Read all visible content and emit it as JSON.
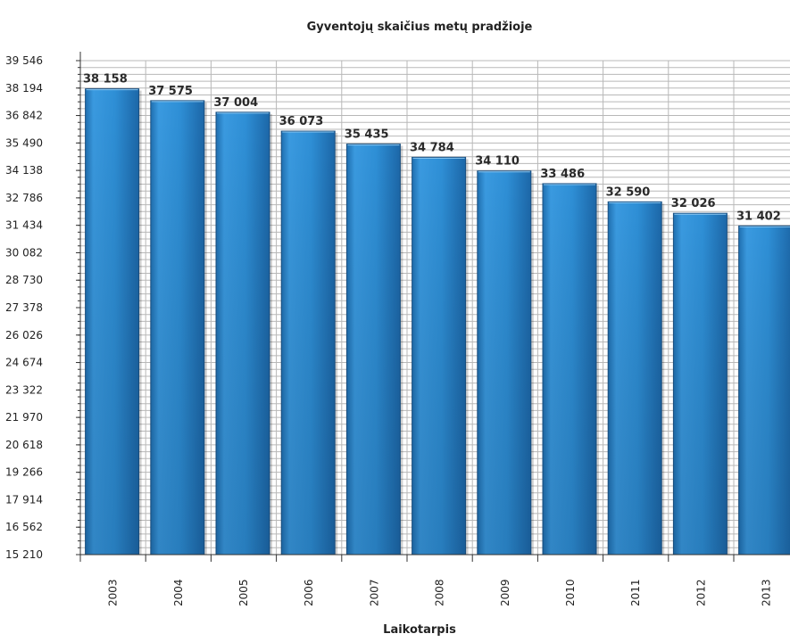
{
  "chart_data": {
    "type": "bar",
    "title": "Gyventojų skaičius metų pradžioje",
    "xlabel": "Laikotarpis",
    "ylabel": "",
    "categories": [
      "2003",
      "2004",
      "2005",
      "2006",
      "2007",
      "2008",
      "2009",
      "2010",
      "2011",
      "2012",
      "2013"
    ],
    "values": [
      38158,
      37575,
      37004,
      36073,
      35435,
      34784,
      34110,
      33486,
      32590,
      32026,
      31402
    ],
    "value_labels": [
      "38 158",
      "37 575",
      "37 004",
      "36 073",
      "35 435",
      "34 784",
      "34 110",
      "33 486",
      "32 590",
      "32 026",
      "31 402"
    ],
    "ylim": [
      15210,
      39546
    ],
    "yticks": [
      15210,
      16562,
      17914,
      19266,
      20618,
      21970,
      23322,
      24674,
      26026,
      27378,
      28730,
      30082,
      31434,
      32786,
      34138,
      35490,
      36842,
      38194,
      39546
    ],
    "ytick_labels": [
      "15 210",
      "16 562",
      "17 914",
      "19 266",
      "20 618",
      "21 970",
      "23 322",
      "24 674",
      "26 026",
      "27 378",
      "28 730",
      "30 082",
      "31 434",
      "32 786",
      "34 138",
      "35 490",
      "36 842",
      "38 194",
      "39 546"
    ],
    "grid": true,
    "colors": {
      "bar": "#2e8fd6",
      "bar_dark": "#1c5f99",
      "bar_edge": "#1a4f80",
      "grid": "#b8b8b8",
      "axis": "#333333"
    }
  }
}
